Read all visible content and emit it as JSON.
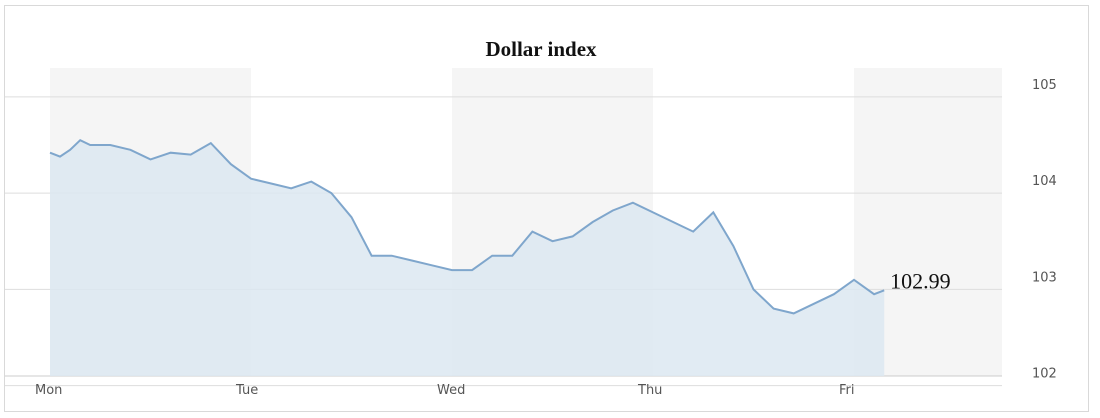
{
  "chart_data": {
    "type": "area",
    "title": "Dollar index",
    "xlabel": "",
    "ylabel": "",
    "x_ticks": [
      "Mon",
      "Tue",
      "Wed",
      "Thu",
      "Fri"
    ],
    "y_ticks": [
      102,
      103,
      104,
      105
    ],
    "ylim": [
      102.1,
      105.3
    ],
    "grid": true,
    "last_value_label": "102.99",
    "series_color": "#7fa6cc",
    "fill_color": "#dce8f1",
    "day_band_color": "#f5f5f5",
    "series": [
      {
        "x": [
          0.0,
          0.05,
          0.1,
          0.15,
          0.2,
          0.3,
          0.4,
          0.5,
          0.6,
          0.7,
          0.8,
          0.9,
          1.0,
          1.1,
          1.2,
          1.3,
          1.4,
          1.5,
          1.6,
          1.7,
          1.8,
          1.9,
          2.0,
          2.1,
          2.2,
          2.3,
          2.4,
          2.5,
          2.6,
          2.7,
          2.8,
          2.9,
          3.0,
          3.1,
          3.2,
          3.3,
          3.4,
          3.5,
          3.6,
          3.7,
          3.8,
          3.9,
          4.0,
          4.1,
          4.15
        ],
        "values": [
          104.42,
          104.38,
          104.45,
          104.55,
          104.5,
          104.5,
          104.45,
          104.35,
          104.42,
          104.4,
          104.52,
          104.3,
          104.15,
          104.1,
          104.05,
          104.12,
          104.0,
          103.75,
          103.35,
          103.35,
          103.3,
          103.25,
          103.2,
          103.2,
          103.35,
          103.35,
          103.6,
          103.5,
          103.55,
          103.7,
          103.82,
          103.9,
          103.8,
          103.7,
          103.6,
          103.8,
          103.45,
          103.0,
          102.8,
          102.75,
          102.85,
          102.95,
          103.1,
          102.95,
          102.99
        ]
      }
    ]
  }
}
